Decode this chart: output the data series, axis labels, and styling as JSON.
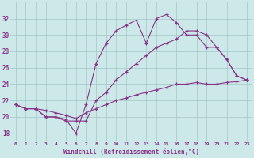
{
  "background_color": "#cce8e8",
  "grid_color": "#aacccc",
  "line_color": "#883388",
  "xlabel": "Windchill (Refroidissement éolien,°C)",
  "xlabel_color": "#883388",
  "ylim": [
    17,
    34
  ],
  "xlim": [
    -0.5,
    23.5
  ],
  "yticks": [
    18,
    20,
    22,
    24,
    26,
    28,
    30,
    32
  ],
  "xticks": [
    0,
    1,
    2,
    3,
    4,
    5,
    6,
    7,
    8,
    9,
    10,
    11,
    12,
    13,
    14,
    15,
    16,
    17,
    18,
    19,
    20,
    21,
    22,
    23
  ],
  "line1_x": [
    0,
    1,
    2,
    3,
    4,
    5,
    6,
    7,
    8,
    9,
    10,
    11,
    12,
    13,
    14,
    15,
    16,
    17,
    18,
    19,
    20,
    21,
    22,
    23
  ],
  "line1_y": [
    21.5,
    21.0,
    21.0,
    20.8,
    20.5,
    20.2,
    19.8,
    20.5,
    21.0,
    21.5,
    22.0,
    22.3,
    22.7,
    23.0,
    23.3,
    23.6,
    24.0,
    24.0,
    24.2,
    24.0,
    24.0,
    24.2,
    24.3,
    24.5
  ],
  "line2_x": [
    0,
    1,
    2,
    3,
    4,
    5,
    6,
    7,
    8,
    9,
    10,
    11,
    12,
    13,
    14,
    15,
    16,
    17,
    18,
    19,
    20,
    21,
    22,
    23
  ],
  "line2_y": [
    21.5,
    21.0,
    21.0,
    20.0,
    20.0,
    19.7,
    18.0,
    21.5,
    26.5,
    29.0,
    30.5,
    31.2,
    31.8,
    29.0,
    32.0,
    32.5,
    31.5,
    30.0,
    30.0,
    28.5,
    28.5,
    27.0,
    25.0,
    24.5
  ],
  "line3_x": [
    0,
    1,
    2,
    3,
    4,
    5,
    6,
    7,
    8,
    9,
    10,
    11,
    12,
    13,
    14,
    15,
    16,
    17,
    18,
    19,
    20,
    21,
    22,
    23
  ],
  "line3_y": [
    21.5,
    21.0,
    21.0,
    20.0,
    20.0,
    19.5,
    19.5,
    19.5,
    22.0,
    23.0,
    24.5,
    25.5,
    26.5,
    27.5,
    28.5,
    29.0,
    29.5,
    30.5,
    30.5,
    30.0,
    28.5,
    27.0,
    25.0,
    24.5
  ]
}
